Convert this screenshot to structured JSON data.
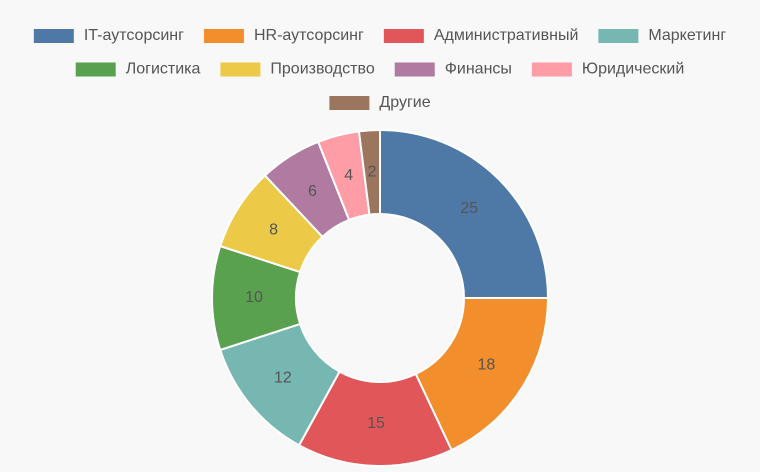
{
  "chart_data": {
    "type": "donut",
    "categories": [
      "IT-аутсорсинг",
      "HR-аутсорсинг",
      "Административный",
      "Маркетинг",
      "Логистика",
      "Производство",
      "Финансы",
      "Юридический",
      "Другие"
    ],
    "values": [
      25,
      18,
      15,
      12,
      10,
      8,
      6,
      4,
      2
    ],
    "colors": [
      "#4e79a7",
      "#f28e2b",
      "#e15759",
      "#76b7b2",
      "#59a14f",
      "#edc948",
      "#b07aa1",
      "#ff9da7",
      "#9c755f"
    ],
    "legend": "top"
  }
}
